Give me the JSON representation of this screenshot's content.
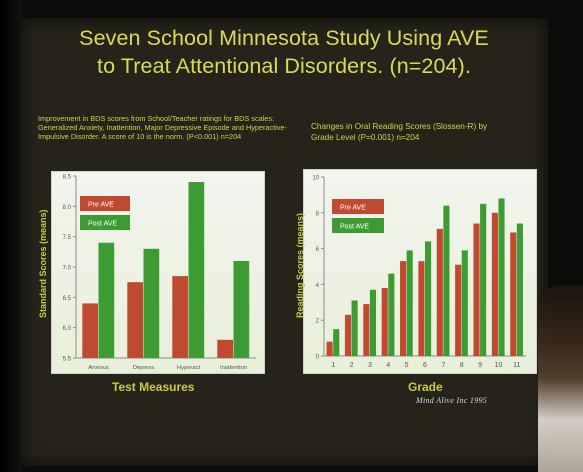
{
  "title": {
    "line1": "Seven School Minnesota Study Using AVE",
    "line2": "to Treat Attentional Disorders. (n=204)."
  },
  "left_description": "Improvement in BDS scores from School/Teacher ratings for BDS scales: Generalized Anxiety, Inattention, Major Depressive Episode and Hyperactive-Impulsive Disorder. A score of 10 is the norm. (P<0.001) n=204",
  "right_description": "Changes in Oral Reading Scores (Slossen-R) by Grade Level (P=0.001) n=204",
  "signature": "Mind Alive Inc    1995",
  "colors": {
    "pre": "#c04a30",
    "post": "#3d9b33",
    "text": "#d8dc55",
    "panel_top": "#f2f4ee",
    "panel_bottom": "#e8efd9"
  },
  "chart_data": [
    {
      "type": "bar",
      "xlabel": "Test Measures",
      "ylabel": "Standard Scores (means)",
      "categories": [
        "Anxious",
        "Depress",
        "Hyperact",
        "Inattention"
      ],
      "ylim": [
        5.5,
        8.5
      ],
      "yticks": [
        "5.5",
        "6.0",
        "6.5",
        "7.0",
        "7.5",
        "8.0",
        "8.5"
      ],
      "series": [
        {
          "name": "Pre  AVE",
          "values": [
            6.4,
            6.75,
            6.85,
            5.8
          ]
        },
        {
          "name": "Post AVE",
          "values": [
            7.4,
            7.3,
            8.4,
            7.1
          ]
        }
      ],
      "legend_position": "top-left"
    },
    {
      "type": "bar",
      "xlabel": "Grade",
      "ylabel": "Reading Scores (means)",
      "categories": [
        "1",
        "2",
        "3",
        "4",
        "5",
        "6",
        "7",
        "8",
        "9",
        "10",
        "11"
      ],
      "ylim": [
        0,
        10
      ],
      "yticks": [
        "0",
        "2",
        "4",
        "6",
        "8",
        "10"
      ],
      "series": [
        {
          "name": "Pre  AVE",
          "values": [
            0.8,
            2.3,
            2.9,
            3.8,
            5.3,
            5.3,
            7.1,
            5.1,
            7.4,
            8.0,
            6.9
          ]
        },
        {
          "name": "Post AVE",
          "values": [
            1.5,
            3.1,
            3.7,
            4.6,
            5.9,
            6.4,
            8.4,
            5.9,
            8.5,
            8.8,
            7.4
          ]
        }
      ],
      "legend_position": "top-left"
    }
  ]
}
